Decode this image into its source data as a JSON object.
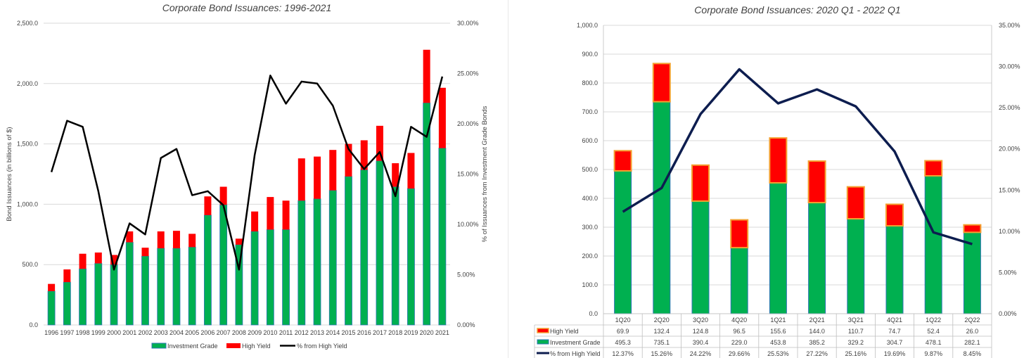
{
  "colors": {
    "investment_grade": "#00b050",
    "investment_grade_border": "#2e75b6",
    "high_yield": "#ff0000",
    "high_yield_border": "#f4a030",
    "line_left": "#000000",
    "line_right": "#0d1d4f",
    "grid": "#d9d9d9"
  },
  "chart_data": [
    {
      "type": "bar",
      "stacked": true,
      "title": "Corporate Bond Issuances: 1996-2021",
      "ylabel": "Bond Issuances (in billions of $)",
      "y2label": "% of Issuances from Investment Grade Bonds",
      "ylim": [
        0,
        2500
      ],
      "y2lim": [
        0,
        30
      ],
      "yticks": [
        "0.0",
        "500.0",
        "1,000.0",
        "1,500.0",
        "2,000.0",
        "2,500.0"
      ],
      "y2ticks": [
        "0.00%",
        "5.00%",
        "10.00%",
        "15.00%",
        "20.00%",
        "25.00%",
        "30.00%"
      ],
      "legend_position": "bottom",
      "grid": true,
      "categories": [
        "1996",
        "1997",
        "1998",
        "1999",
        "2000",
        "2001",
        "2002",
        "2003",
        "2004",
        "2005",
        "2006",
        "2007",
        "2008",
        "2009",
        "2010",
        "2011",
        "2012",
        "2013",
        "2014",
        "2015",
        "2016",
        "2017",
        "2018",
        "2019",
        "2020",
        "2021"
      ],
      "series": [
        {
          "name": "Investment Grade",
          "kind": "bar",
          "values": [
            280,
            355,
            465,
            510,
            500,
            685,
            570,
            635,
            635,
            645,
            910,
            995,
            665,
            775,
            790,
            790,
            1030,
            1045,
            1115,
            1230,
            1285,
            1360,
            1145,
            1130,
            1840,
            1465
          ]
        },
        {
          "name": "High Yield",
          "kind": "bar",
          "values": [
            60,
            105,
            125,
            90,
            80,
            90,
            70,
            140,
            145,
            110,
            155,
            150,
            50,
            165,
            270,
            240,
            350,
            350,
            335,
            270,
            245,
            290,
            195,
            295,
            440,
            500
          ]
        },
        {
          "name": "% from High Yield",
          "kind": "line",
          "axis": "y2",
          "values": [
            15.2,
            20.3,
            19.7,
            13.3,
            5.5,
            10.1,
            9.0,
            16.6,
            17.5,
            12.9,
            13.3,
            11.9,
            5.5,
            16.9,
            24.8,
            22.0,
            24.2,
            24.0,
            21.8,
            17.5,
            15.5,
            17.2,
            12.8,
            19.7,
            18.7,
            24.7
          ]
        }
      ]
    },
    {
      "type": "bar",
      "stacked": true,
      "title": "Corporate Bond Issuances: 2020 Q1 - 2022 Q1",
      "ylim": [
        0,
        1000
      ],
      "y2lim": [
        0,
        35
      ],
      "yticks": [
        "0.0",
        "100.0",
        "200.0",
        "300.0",
        "400.0",
        "500.0",
        "600.0",
        "700.0",
        "800.0",
        "900.0",
        "1,000.0"
      ],
      "y2ticks": [
        "0.00%",
        "5.00%",
        "10.00%",
        "15.00%",
        "20.00%",
        "25.00%",
        "30.00%",
        "35.00%"
      ],
      "legend_position": "data-table",
      "grid": true,
      "categories": [
        "1Q20",
        "2Q20",
        "3Q20",
        "4Q20",
        "1Q21",
        "2Q21",
        "3Q21",
        "4Q21",
        "1Q22",
        "2Q22"
      ],
      "series": [
        {
          "name": "High Yield",
          "kind": "bar",
          "values": [
            69.9,
            132.4,
            124.8,
            96.5,
            155.6,
            144.0,
            110.7,
            74.7,
            52.4,
            26.0
          ],
          "labels": [
            "69.9",
            "132.4",
            "124.8",
            "96.5",
            "155.6",
            "144.0",
            "110.7",
            "74.7",
            "52.4",
            "26.0"
          ]
        },
        {
          "name": "Investment Grade",
          "kind": "bar",
          "values": [
            495.3,
            735.1,
            390.4,
            229.0,
            453.8,
            385.2,
            329.2,
            304.7,
            478.1,
            282.1
          ],
          "labels": [
            "495.3",
            "735.1",
            "390.4",
            "229.0",
            "453.8",
            "385.2",
            "329.2",
            "304.7",
            "478.1",
            "282.1"
          ]
        },
        {
          "name": "% from High Yield",
          "kind": "line",
          "axis": "y2",
          "values": [
            12.37,
            15.26,
            24.22,
            29.66,
            25.53,
            27.22,
            25.16,
            19.69,
            9.87,
            8.45
          ],
          "labels": [
            "12.37%",
            "15.26%",
            "24.22%",
            "29.66%",
            "25.53%",
            "27.22%",
            "25.16%",
            "19.69%",
            "9.87%",
            "8.45%"
          ]
        }
      ]
    }
  ]
}
